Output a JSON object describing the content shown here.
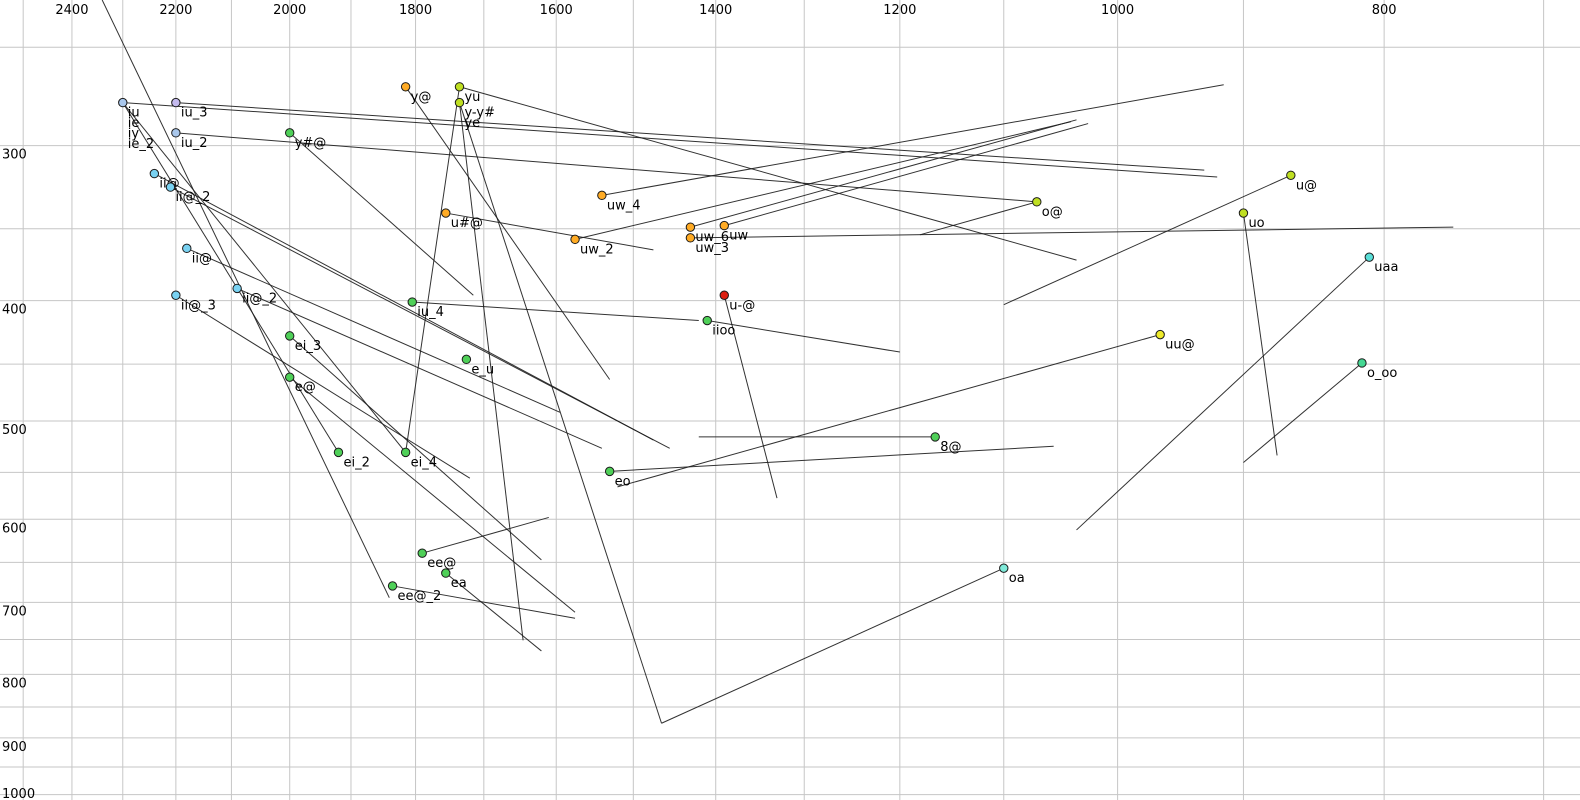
{
  "chart_data": {
    "type": "scatter",
    "title": "",
    "xlabel": "",
    "ylabel": "",
    "x_axis": {
      "scale": "log",
      "reversed": true,
      "range": [
        2549,
        679
      ],
      "major_ticks": [
        2400,
        2200,
        2000,
        1800,
        1600,
        1400,
        1200,
        1000,
        800
      ],
      "grid_step_hz": 100,
      "grid_from": 2500,
      "grid_to": 700
    },
    "y_axis": {
      "scale": "log",
      "reversed": true,
      "range": [
        229,
        1010
      ],
      "major_ticks": [
        300,
        400,
        500,
        600,
        700,
        800,
        900,
        1000
      ],
      "grid_step_hz": 50,
      "grid_from": 250,
      "grid_to": 1000
    },
    "grid_color": "#c6c6c6",
    "segment_color": "#1c1c1c",
    "palette": {
      "blue": "#a9c7ec",
      "lavender": "#c4baee",
      "cyan": "#79d2f2",
      "green": "#4fd058",
      "yellowgreen": "#bfdf22",
      "orange": "#ffab24",
      "yellow": "#eeea2a",
      "red": "#dd2012",
      "turquoise": "#5adfd8",
      "paleturquoise": "#7fead9",
      "tealgreen": "#45d893"
    },
    "points": [
      {
        "label": "iu",
        "f2": 2300,
        "f1": 277,
        "color": "blue",
        "marker": true,
        "row": 0
      },
      {
        "label": "ie",
        "f2": 2300,
        "f1": 277,
        "color": "blue",
        "marker": false,
        "row": 1
      },
      {
        "label": "iy",
        "f2": 2300,
        "f1": 277,
        "color": "blue",
        "marker": false,
        "row": 2
      },
      {
        "label": "ie_2",
        "f2": 2300,
        "f1": 277,
        "color": "blue",
        "marker": false,
        "row": 3
      },
      {
        "label": "iu_3",
        "f2": 2200,
        "f1": 277,
        "color": "lavender",
        "marker": true,
        "row": 0
      },
      {
        "label": "iu_2",
        "f2": 2200,
        "f1": 293,
        "color": "blue",
        "marker": true,
        "row": 0
      },
      {
        "label": "y#@",
        "f2": 2000,
        "f1": 293,
        "color": "green",
        "marker": true,
        "row": 0
      },
      {
        "label": "y@",
        "f2": 1815,
        "f1": 269,
        "color": "orange",
        "marker": true,
        "row": 0
      },
      {
        "label": "yu",
        "f2": 1735,
        "f1": 269,
        "color": "yellowgreen",
        "marker": true,
        "row": 0
      },
      {
        "label": "y-y#",
        "f2": 1735,
        "f1": 277,
        "color": "yellowgreen",
        "marker": true,
        "row": 0
      },
      {
        "label": "ye",
        "f2": 1735,
        "f1": 277,
        "color": "yellowgreen",
        "marker": false,
        "row": 1
      },
      {
        "label": "ii@",
        "f2": 2240,
        "f1": 316,
        "color": "cyan",
        "marker": true,
        "row": 0
      },
      {
        "label": "ii@_2",
        "f2": 2210,
        "f1": 324,
        "color": "cyan",
        "marker": true,
        "row": 0
      },
      {
        "label": "ii@",
        "f2": 2180,
        "f1": 363,
        "color": "cyan",
        "marker": true,
        "row": 0
      },
      {
        "label": "ii@_2",
        "f2": 2090,
        "f1": 391,
        "color": "cyan",
        "marker": true,
        "row": 0
      },
      {
        "label": "ii@_3",
        "f2": 2200,
        "f1": 396,
        "color": "cyan",
        "marker": true,
        "row": 0
      },
      {
        "label": "u#@",
        "f2": 1755,
        "f1": 340,
        "color": "orange",
        "marker": true,
        "row": 0
      },
      {
        "label": "uw_4",
        "f2": 1540,
        "f1": 329,
        "color": "orange",
        "marker": true,
        "row": 0
      },
      {
        "label": "uw_2",
        "f2": 1575,
        "f1": 357,
        "color": "orange",
        "marker": true,
        "row": 0
      },
      {
        "label": "uw_6",
        "f2": 1430,
        "f1": 349,
        "color": "orange",
        "marker": true,
        "row": 0
      },
      {
        "label": "uw",
        "f2": 1390,
        "f1": 348,
        "color": "orange",
        "marker": true,
        "row": 0
      },
      {
        "label": "uw_3",
        "f2": 1430,
        "f1": 356,
        "color": "orange",
        "marker": true,
        "row": 0
      },
      {
        "label": "iu_4",
        "f2": 1805,
        "f1": 401,
        "color": "green",
        "marker": true,
        "row": 0
      },
      {
        "label": "ei_3",
        "f2": 2000,
        "f1": 427,
        "color": "green",
        "marker": true,
        "row": 0
      },
      {
        "label": "e@",
        "f2": 2000,
        "f1": 461,
        "color": "green",
        "marker": true,
        "row": 0
      },
      {
        "label": "e_u",
        "f2": 1725,
        "f1": 446,
        "color": "green",
        "marker": true,
        "row": 0
      },
      {
        "label": "ei_2",
        "f2": 1920,
        "f1": 530,
        "color": "green",
        "marker": true,
        "row": 0
      },
      {
        "label": "ei_4",
        "f2": 1815,
        "f1": 530,
        "color": "green",
        "marker": true,
        "row": 0
      },
      {
        "label": "eo",
        "f2": 1530,
        "f1": 549,
        "color": "green",
        "marker": true,
        "row": 0
      },
      {
        "label": "8@",
        "f2": 1165,
        "f1": 515,
        "color": "green",
        "marker": true,
        "row": 0
      },
      {
        "label": "ee@",
        "f2": 1790,
        "f1": 639,
        "color": "green",
        "marker": true,
        "row": 0
      },
      {
        "label": "ea",
        "f2": 1755,
        "f1": 663,
        "color": "green",
        "marker": true,
        "row": 0
      },
      {
        "label": "ee@_2",
        "f2": 1835,
        "f1": 679,
        "color": "green",
        "marker": true,
        "row": 0
      },
      {
        "label": "u-@",
        "f2": 1390,
        "f1": 396,
        "color": "red",
        "marker": true,
        "row": 0
      },
      {
        "label": "iioo",
        "f2": 1410,
        "f1": 415,
        "color": "green",
        "marker": true,
        "row": 0
      },
      {
        "label": "o@",
        "f2": 1070,
        "f1": 333,
        "color": "yellowgreen",
        "marker": true,
        "row": 0
      },
      {
        "label": "uo",
        "f2": 900,
        "f1": 340,
        "color": "yellowgreen",
        "marker": true,
        "row": 0
      },
      {
        "label": "u@",
        "f2": 865,
        "f1": 317,
        "color": "yellowgreen",
        "marker": true,
        "row": 0
      },
      {
        "label": "uu@",
        "f2": 965,
        "f1": 426,
        "color": "yellow",
        "marker": true,
        "row": 0
      },
      {
        "label": "uaa",
        "f2": 810,
        "f1": 369,
        "color": "turquoise",
        "marker": true,
        "row": 0
      },
      {
        "label": "o_oo",
        "f2": 815,
        "f1": 449,
        "color": "tealgreen",
        "marker": true,
        "row": 0
      },
      {
        "label": "oa",
        "f2": 1100,
        "f1": 657,
        "color": "paleturquoise",
        "marker": true,
        "row": 0
      }
    ],
    "segments": [
      [
        2340,
        229,
        1840,
        694
      ],
      [
        2300,
        277,
        1920,
        530
      ],
      [
        2300,
        277,
        1815,
        530
      ],
      [
        2300,
        277,
        920,
        318
      ],
      [
        2200,
        277,
        930,
        314
      ],
      [
        2200,
        293,
        1070,
        333
      ],
      [
        2240,
        316,
        1475,
        518
      ],
      [
        2210,
        324,
        1455,
        526
      ],
      [
        2180,
        363,
        1595,
        492
      ],
      [
        2090,
        391,
        1540,
        526
      ],
      [
        2200,
        396,
        1720,
        556
      ],
      [
        2000,
        293,
        1715,
        396
      ],
      [
        2000,
        427,
        1620,
        647
      ],
      [
        2000,
        461,
        1575,
        713
      ],
      [
        1815,
        530,
        1735,
        269
      ],
      [
        1815,
        269,
        1530,
        463
      ],
      [
        1735,
        269,
        1035,
        371
      ],
      [
        1735,
        277,
        1645,
        751
      ],
      [
        1735,
        277,
        1465,
        876
      ],
      [
        1100,
        657,
        1465,
        876
      ],
      [
        1540,
        329,
        915,
        268
      ],
      [
        1575,
        357,
        1040,
        287
      ],
      [
        1430,
        349,
        1035,
        286
      ],
      [
        1390,
        348,
        1025,
        288
      ],
      [
        1430,
        356,
        755,
        349
      ],
      [
        1755,
        340,
        1475,
        364
      ],
      [
        1805,
        401,
        1420,
        415
      ],
      [
        1390,
        396,
        1330,
        577
      ],
      [
        1410,
        415,
        1200,
        440
      ],
      [
        1165,
        515,
        1420,
        515
      ],
      [
        1530,
        549,
        1055,
        524
      ],
      [
        1790,
        639,
        1610,
        598
      ],
      [
        1755,
        663,
        1620,
        766
      ],
      [
        1835,
        679,
        1575,
        721
      ],
      [
        1070,
        333,
        1180,
        354
      ],
      [
        900,
        340,
        875,
        533
      ],
      [
        865,
        317,
        1100,
        403
      ],
      [
        965,
        426,
        1520,
        565
      ],
      [
        810,
        369,
        1035,
        612
      ],
      [
        815,
        449,
        900,
        540
      ]
    ]
  }
}
